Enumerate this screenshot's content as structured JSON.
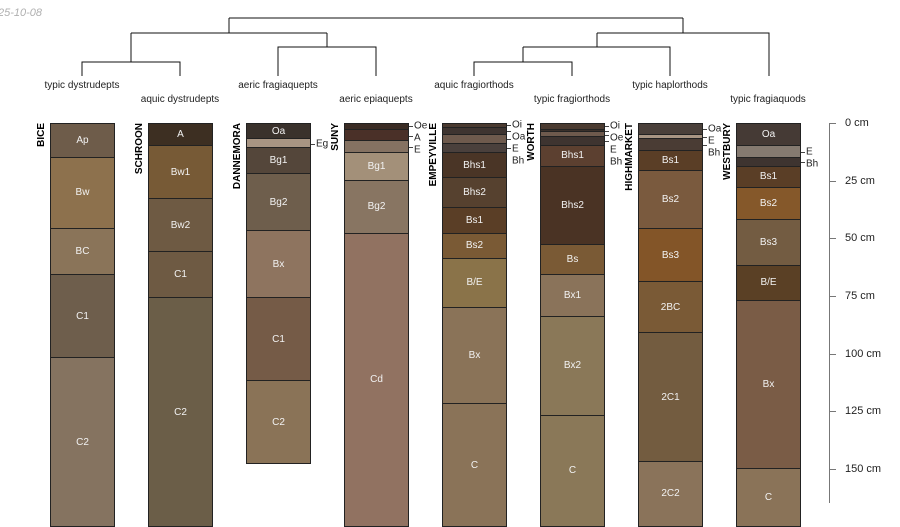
{
  "date_label": "25-10-08",
  "depth_axis": {
    "unit": "cm",
    "ticks": [
      "0 cm",
      "25 cm",
      "50 cm",
      "75 cm",
      "100 cm",
      "125 cm",
      "150 cm"
    ],
    "tick_values": [
      0,
      25,
      50,
      75,
      100,
      125,
      150
    ]
  },
  "profiles": [
    {
      "name": "BICE",
      "classification": "typic dystrudepts",
      "horizons": [
        {
          "name": "Ap",
          "top": 0,
          "bottom": 15,
          "color": "#6e5c4a"
        },
        {
          "name": "Bw",
          "top": 15,
          "bottom": 46,
          "color": "#8d714d"
        },
        {
          "name": "BC",
          "top": 46,
          "bottom": 66,
          "color": "#8a7459"
        },
        {
          "name": "C1",
          "top": 66,
          "bottom": 102,
          "color": "#6e5e4c"
        },
        {
          "name": "C2",
          "top": 102,
          "bottom": 175,
          "color": "#857360"
        }
      ]
    },
    {
      "name": "SCHROON",
      "classification": "aquic dystrudepts",
      "horizons": [
        {
          "name": "A",
          "top": 0,
          "bottom": 10,
          "color": "#3d2f22"
        },
        {
          "name": "Bw1",
          "top": 10,
          "bottom": 33,
          "color": "#775a36"
        },
        {
          "name": "Bw2",
          "top": 33,
          "bottom": 56,
          "color": "#6e5a43"
        },
        {
          "name": "C1",
          "top": 56,
          "bottom": 76,
          "color": "#6e5a43"
        },
        {
          "name": "C2",
          "top": 76,
          "bottom": 175,
          "color": "#6b5e48"
        }
      ]
    },
    {
      "name": "DANNEMORA",
      "classification": "aeric fragiaquepts",
      "horizons": [
        {
          "name": "Oa",
          "top": 0,
          "bottom": 7,
          "color": "#3a322c"
        },
        {
          "name": "Eg",
          "top": 7,
          "bottom": 11,
          "color": "#a89583"
        },
        {
          "name": "Bg1",
          "top": 11,
          "bottom": 22,
          "color": "#54463a"
        },
        {
          "name": "Bg2",
          "top": 22,
          "bottom": 47,
          "color": "#6e5e4c"
        },
        {
          "name": "Bx",
          "top": 47,
          "bottom": 76,
          "color": "#8e745f"
        },
        {
          "name": "C1",
          "top": 76,
          "bottom": 112,
          "color": "#755b47"
        },
        {
          "name": "C2",
          "top": 112,
          "bottom": 148,
          "color": "#8a7357"
        }
      ]
    },
    {
      "name": "SUNY",
      "classification": "aeric epiaquepts",
      "horizons": [
        {
          "name": "Oe",
          "top": 0,
          "bottom": 3,
          "color": "#3a2c24"
        },
        {
          "name": "A",
          "top": 3,
          "bottom": 8,
          "color": "#4a3028"
        },
        {
          "name": "E",
          "top": 8,
          "bottom": 13,
          "color": "#857262"
        },
        {
          "name": "Bg1",
          "top": 13,
          "bottom": 25,
          "color": "#a39079"
        },
        {
          "name": "Bg2",
          "top": 25,
          "bottom": 48,
          "color": "#887562"
        },
        {
          "name": "Cd",
          "top": 48,
          "bottom": 175,
          "color": "#917261"
        }
      ]
    },
    {
      "name": "EMPEYVILLE",
      "classification": "aquic fragiorthods",
      "horizons": [
        {
          "name": "Oi",
          "top": 0,
          "bottom": 2,
          "color": "#4a3a30"
        },
        {
          "name": "Oa",
          "top": 2,
          "bottom": 5,
          "color": "#3e3430"
        },
        {
          "name": "E",
          "top": 5,
          "bottom": 9,
          "color": "#6e5a4d"
        },
        {
          "name": "Bh",
          "top": 9,
          "bottom": 13,
          "color": "#4a403c"
        },
        {
          "name": "Bhs1",
          "top": 13,
          "bottom": 24,
          "color": "#4a3526"
        },
        {
          "name": "Bhs2",
          "top": 24,
          "bottom": 37,
          "color": "#56412f"
        },
        {
          "name": "Bs1",
          "top": 37,
          "bottom": 48,
          "color": "#5a3e26"
        },
        {
          "name": "Bs2",
          "top": 48,
          "bottom": 59,
          "color": "#7a5a35"
        },
        {
          "name": "B/E",
          "top": 59,
          "bottom": 80,
          "color": "#8a7349"
        },
        {
          "name": "Bx",
          "top": 80,
          "bottom": 122,
          "color": "#8a7358"
        },
        {
          "name": "C",
          "top": 122,
          "bottom": 175,
          "color": "#8a7358"
        }
      ]
    },
    {
      "name": "WORTH",
      "classification": "typic fragiorthods",
      "horizons": [
        {
          "name": "Oi",
          "top": 0,
          "bottom": 3,
          "color": "#4a3a30"
        },
        {
          "name": "Oe",
          "top": 3,
          "bottom": 4,
          "color": "#3a302a"
        },
        {
          "name": "E",
          "top": 4,
          "bottom": 6,
          "color": "#6e5a4d"
        },
        {
          "name": "Bh",
          "top": 6,
          "bottom": 10,
          "color": "#3e3430"
        },
        {
          "name": "Bhs1",
          "top": 10,
          "bottom": 19,
          "color": "#5c4030"
        },
        {
          "name": "Bhs2",
          "top": 19,
          "bottom": 53,
          "color": "#4a3324"
        },
        {
          "name": "Bs",
          "top": 53,
          "bottom": 66,
          "color": "#7a5a35"
        },
        {
          "name": "Bx1",
          "top": 66,
          "bottom": 84,
          "color": "#8a735a"
        },
        {
          "name": "Bx2",
          "top": 84,
          "bottom": 127,
          "color": "#8a7858"
        },
        {
          "name": "C",
          "top": 127,
          "bottom": 175,
          "color": "#8a7858"
        }
      ]
    },
    {
      "name": "HIGHMARKET",
      "classification": "typic haplorthods",
      "horizons": [
        {
          "name": "Oa",
          "top": 0,
          "bottom": 5,
          "color": "#4a403a"
        },
        {
          "name": "E",
          "top": 5,
          "bottom": 7,
          "color": "#a89583"
        },
        {
          "name": "Bh",
          "top": 7,
          "bottom": 12,
          "color": "#4a3c34"
        },
        {
          "name": "Bs1",
          "top": 12,
          "bottom": 21,
          "color": "#5a3e26"
        },
        {
          "name": "Bs2",
          "top": 21,
          "bottom": 46,
          "color": "#7a5a3e"
        },
        {
          "name": "Bs3",
          "top": 46,
          "bottom": 69,
          "color": "#835528"
        },
        {
          "name": "2BC",
          "top": 69,
          "bottom": 91,
          "color": "#7a5a36"
        },
        {
          "name": "2C1",
          "top": 91,
          "bottom": 147,
          "color": "#735c40"
        },
        {
          "name": "2C2",
          "top": 147,
          "bottom": 175,
          "color": "#8a735a"
        }
      ]
    },
    {
      "name": "WESTBURY",
      "classification": "typic fragiaquods",
      "horizons": [
        {
          "name": "Oa",
          "top": 0,
          "bottom": 10,
          "color": "#453a35"
        },
        {
          "name": "E",
          "top": 10,
          "bottom": 15,
          "color": "#857a70"
        },
        {
          "name": "Bh",
          "top": 15,
          "bottom": 19,
          "color": "#3e3430"
        },
        {
          "name": "Bs1",
          "top": 19,
          "bottom": 28,
          "color": "#5a3e26"
        },
        {
          "name": "Bs2",
          "top": 28,
          "bottom": 42,
          "color": "#85582a"
        },
        {
          "name": "Bs3",
          "top": 42,
          "bottom": 62,
          "color": "#735c42"
        },
        {
          "name": "B/E",
          "top": 62,
          "bottom": 77,
          "color": "#5a4025"
        },
        {
          "name": "Bx",
          "top": 77,
          "bottom": 150,
          "color": "#7a5c46"
        },
        {
          "name": "C",
          "top": 150,
          "bottom": 175,
          "color": "#8a7358"
        }
      ]
    }
  ]
}
